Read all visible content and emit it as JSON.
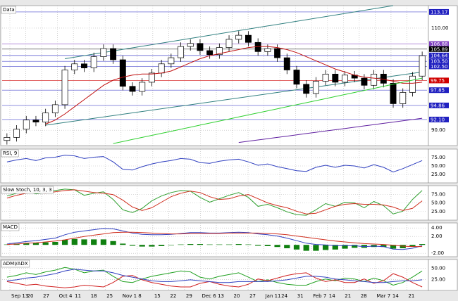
{
  "chart_data": [
    {
      "type": "candlestick",
      "title": "Data",
      "ylim": [
        87,
        114.4
      ],
      "yticks": [
        {
          "value": 90,
          "label": "90.00"
        },
        {
          "value": 110,
          "label": "110.00"
        }
      ],
      "open": [
        88.0,
        88.6,
        90.2,
        92.0,
        91.6,
        93.4,
        95.0,
        101.8,
        103.0,
        102.2,
        104.4,
        106.0,
        103.8,
        98.6,
        97.6,
        99.4,
        101.2,
        103.0,
        104.2,
        106.4,
        107.0,
        105.6,
        104.8,
        106.2,
        107.8,
        108.6,
        107.2,
        105.4,
        106.0,
        104.2,
        101.8,
        99.0,
        97.2,
        99.6,
        101.0,
        99.4,
        100.8,
        100.2,
        98.8,
        101.0,
        99.2,
        95.2,
        97.4,
        100.6
      ],
      "high": [
        89.4,
        91.0,
        92.8,
        92.8,
        94.2,
        95.8,
        102.6,
        103.8,
        103.8,
        105.2,
        106.8,
        106.8,
        104.6,
        99.4,
        100.2,
        102.0,
        103.8,
        105.0,
        107.2,
        107.8,
        107.8,
        106.4,
        107.0,
        108.6,
        109.4,
        109.4,
        108.0,
        106.8,
        106.8,
        105.0,
        102.6,
        99.8,
        100.4,
        101.8,
        101.8,
        101.6,
        101.6,
        101.0,
        101.8,
        101.8,
        100.0,
        98.2,
        101.4,
        105.4
      ],
      "low": [
        87.2,
        87.8,
        89.4,
        90.8,
        90.8,
        92.6,
        94.2,
        101.0,
        101.4,
        101.4,
        103.6,
        103.0,
        97.8,
        96.8,
        96.8,
        98.6,
        100.4,
        102.2,
        103.4,
        105.6,
        104.8,
        104.0,
        104.0,
        105.4,
        107.0,
        106.4,
        104.6,
        104.6,
        103.4,
        101.0,
        98.2,
        96.4,
        96.4,
        98.8,
        98.6,
        98.6,
        99.4,
        98.0,
        98.0,
        98.4,
        94.4,
        94.4,
        96.6,
        99.8
      ],
      "close": [
        88.6,
        90.2,
        92.0,
        91.6,
        93.4,
        95.0,
        101.8,
        103.0,
        102.2,
        104.4,
        106.0,
        103.8,
        98.6,
        97.6,
        99.4,
        101.2,
        103.0,
        104.2,
        106.4,
        107.0,
        105.6,
        104.8,
        106.2,
        107.8,
        108.6,
        107.2,
        105.4,
        106.0,
        104.2,
        101.8,
        99.0,
        97.2,
        99.6,
        101.0,
        99.4,
        100.8,
        100.2,
        98.8,
        101.0,
        99.2,
        95.2,
        97.4,
        100.6,
        104.6
      ],
      "series": [
        {
          "color": "#c01010",
          "values": [
            null,
            null,
            null,
            null,
            91.2,
            92.0,
            93.2,
            94.6,
            96.0,
            97.4,
            98.8,
            99.8,
            100.4,
            100.8,
            101.0,
            101.0,
            101.2,
            101.6,
            102.4,
            103.2,
            104.0,
            104.6,
            105.0,
            105.4,
            105.8,
            106.2,
            106.4,
            106.4,
            106.2,
            105.8,
            105.2,
            104.4,
            103.6,
            102.8,
            102.0,
            101.4,
            100.8,
            100.4,
            100.2,
            100.0,
            99.6,
            99.2,
            99.2,
            99.4
          ]
        },
        {
          "color": "#30d030",
          "values": [
            null,
            null,
            null,
            null,
            null,
            null,
            null,
            null,
            null,
            null,
            null,
            87.4,
            87.8,
            88.2,
            88.6,
            89.0,
            89.4,
            89.8,
            90.2,
            90.6,
            91.0,
            91.4,
            91.8,
            92.2,
            92.6,
            93.0,
            93.4,
            93.8,
            94.2,
            94.6,
            95.0,
            95.4,
            95.8,
            96.2,
            96.6,
            97.0,
            97.4,
            97.8,
            98.2,
            98.6,
            99.0,
            99.4,
            99.8,
            100.2
          ]
        },
        {
          "color": "#6020a0",
          "values": [
            null,
            null,
            null,
            null,
            null,
            null,
            null,
            null,
            null,
            null,
            null,
            null,
            null,
            null,
            null,
            null,
            null,
            null,
            null,
            null,
            null,
            null,
            null,
            null,
            87.6,
            87.85,
            88.1,
            88.35,
            88.6,
            88.85,
            89.1,
            89.35,
            89.6,
            89.85,
            90.1,
            90.35,
            90.6,
            90.85,
            91.1,
            91.35,
            91.6,
            91.85,
            92.1,
            92.35
          ]
        }
      ],
      "trendlines": [
        {
          "color": "#2f7f7f",
          "x": [
            6,
            40
          ],
          "values": [
            104.0,
            114.4
          ]
        },
        {
          "color": "#2f7f7f",
          "x": [
            4,
            43
          ],
          "values": [
            91.0,
            101.4
          ]
        }
      ],
      "levels": [
        {
          "value": 113.17,
          "label": "113.17",
          "color": "#2020c0"
        },
        {
          "value": 106.88,
          "label": "106.88",
          "color": "#8040c0"
        },
        {
          "value": 105.89,
          "label": "105.89",
          "color": "#000000"
        },
        {
          "value": 104.64,
          "label": "104.64",
          "color": "#2020c0"
        },
        {
          "value": 103.5,
          "label": "103.50",
          "color": "#2020c0"
        },
        {
          "value": 102.5,
          "label": "102.50",
          "color": "#2020c0"
        },
        {
          "value": 99.75,
          "label": "99.75",
          "color": "#d00000"
        },
        {
          "value": 97.85,
          "label": "97.85",
          "color": "#2020c0"
        },
        {
          "value": 94.86,
          "label": "94.86",
          "color": "#2020c0"
        },
        {
          "value": 92.1,
          "label": "92.10",
          "color": "#2020c0"
        }
      ]
    },
    {
      "type": "line",
      "title": "RSI, 9",
      "ylim": [
        0,
        100
      ],
      "yticks": [
        {
          "value": 25,
          "label": "25.00"
        },
        {
          "value": 50,
          "label": "50.00"
        },
        {
          "value": 75,
          "label": "75.00"
        }
      ],
      "series": [
        {
          "color": "#3040c0",
          "values": [
            62,
            68,
            72,
            66,
            74,
            76,
            82,
            80,
            72,
            76,
            78,
            62,
            40,
            38,
            48,
            56,
            62,
            66,
            72,
            70,
            60,
            58,
            64,
            68,
            70,
            62,
            52,
            56,
            48,
            42,
            36,
            34,
            46,
            52,
            46,
            52,
            50,
            44,
            54,
            46,
            32,
            42,
            54,
            66
          ]
        }
      ]
    },
    {
      "type": "line",
      "title": "Slow Stoch, 10, 3, 3",
      "ylim": [
        0,
        100
      ],
      "yticks": [
        {
          "value": 25,
          "label": "25.00"
        },
        {
          "value": 50,
          "label": "50.00"
        },
        {
          "value": 75,
          "label": "75.00"
        }
      ],
      "series": [
        {
          "color": "#30a030",
          "values": [
            70,
            78,
            84,
            76,
            80,
            86,
            90,
            88,
            72,
            78,
            82,
            60,
            30,
            22,
            34,
            56,
            70,
            80,
            86,
            84,
            66,
            52,
            62,
            72,
            80,
            66,
            40,
            46,
            36,
            24,
            16,
            14,
            30,
            48,
            40,
            52,
            50,
            36,
            54,
            42,
            18,
            26,
            60,
            86
          ]
        },
        {
          "color": "#d03020",
          "values": [
            64,
            72,
            78,
            80,
            78,
            82,
            86,
            88,
            84,
            80,
            78,
            74,
            58,
            38,
            28,
            36,
            52,
            68,
            78,
            84,
            80,
            68,
            60,
            62,
            70,
            74,
            62,
            50,
            42,
            36,
            26,
            18,
            20,
            30,
            40,
            46,
            48,
            46,
            46,
            44,
            38,
            28,
            34,
            56
          ]
        }
      ]
    },
    {
      "type": "combo",
      "title": "MACD",
      "ylim": [
        -2.8,
        5.2
      ],
      "yticks": [
        {
          "value": -2,
          "label": "-2.00"
        },
        {
          "value": 2,
          "label": "2.00"
        },
        {
          "value": 4,
          "label": "4.00"
        }
      ],
      "histogram": {
        "color": "#108010",
        "values": [
          0.1,
          0.3,
          0.4,
          0.5,
          0.6,
          0.7,
          1.2,
          1.4,
          1.3,
          1.3,
          1.3,
          0.9,
          0.3,
          -0.2,
          -0.4,
          -0.4,
          -0.3,
          -0.1,
          0.1,
          0.2,
          0.2,
          0.1,
          0.1,
          0.1,
          0.2,
          0.1,
          -0.2,
          -0.3,
          -0.5,
          -0.8,
          -1.1,
          -1.4,
          -1.4,
          -1.2,
          -1.1,
          -0.9,
          -0.7,
          -0.7,
          -0.5,
          -0.5,
          -0.9,
          -0.8,
          -0.4,
          0.2
        ]
      },
      "series": [
        {
          "color": "#3040c0",
          "values": [
            0.2,
            0.5,
            0.8,
            1.0,
            1.3,
            1.6,
            2.4,
            3.0,
            3.3,
            3.6,
            3.9,
            3.8,
            3.3,
            2.8,
            2.5,
            2.4,
            2.4,
            2.5,
            2.7,
            2.9,
            2.9,
            2.8,
            2.8,
            2.9,
            3.0,
            2.9,
            2.6,
            2.4,
            2.1,
            1.6,
            1.0,
            0.4,
            0.1,
            0.0,
            -0.2,
            -0.2,
            -0.2,
            -0.4,
            -0.3,
            -0.4,
            -1.0,
            -1.1,
            -0.8,
            -0.2
          ]
        },
        {
          "color": "#d03020",
          "values": [
            0.1,
            0.2,
            0.4,
            0.5,
            0.7,
            0.9,
            1.2,
            1.6,
            2.0,
            2.3,
            2.6,
            2.9,
            3.0,
            3.0,
            2.9,
            2.8,
            2.7,
            2.6,
            2.6,
            2.7,
            2.7,
            2.7,
            2.7,
            2.8,
            2.8,
            2.8,
            2.8,
            2.7,
            2.6,
            2.4,
            2.1,
            1.8,
            1.5,
            1.2,
            0.9,
            0.7,
            0.5,
            0.3,
            0.2,
            0.1,
            -0.1,
            -0.3,
            -0.4,
            -0.4
          ]
        }
      ]
    },
    {
      "type": "line",
      "title": "ADMI/ADX",
      "ylim": [
        0,
        70
      ],
      "yticks": [
        {
          "value": 25,
          "label": "25.00"
        },
        {
          "value": 50,
          "label": "50.00"
        }
      ],
      "series": [
        {
          "color": "#20a020",
          "values": [
            30,
            34,
            40,
            36,
            42,
            46,
            52,
            48,
            40,
            44,
            46,
            32,
            20,
            18,
            26,
            32,
            36,
            40,
            44,
            42,
            30,
            26,
            32,
            36,
            40,
            30,
            20,
            24,
            18,
            14,
            12,
            12,
            20,
            26,
            22,
            28,
            26,
            20,
            28,
            22,
            12,
            18,
            30,
            44
          ]
        },
        {
          "color": "#d02020",
          "values": [
            20,
            16,
            12,
            14,
            10,
            8,
            6,
            8,
            12,
            10,
            8,
            18,
            32,
            34,
            24,
            18,
            14,
            10,
            8,
            8,
            16,
            20,
            14,
            10,
            8,
            14,
            26,
            22,
            28,
            34,
            38,
            40,
            28,
            20,
            24,
            18,
            18,
            26,
            16,
            22,
            38,
            30,
            18,
            8
          ]
        },
        {
          "color": "#3040c0",
          "values": [
            22,
            24,
            28,
            30,
            34,
            38,
            44,
            48,
            46,
            44,
            44,
            40,
            34,
            30,
            26,
            22,
            20,
            20,
            22,
            24,
            22,
            20,
            18,
            18,
            20,
            20,
            20,
            20,
            22,
            24,
            28,
            32,
            32,
            30,
            26,
            24,
            22,
            20,
            18,
            18,
            20,
            22,
            22,
            24
          ]
        }
      ]
    }
  ],
  "x_axis": {
    "labels": [
      "Sep 13",
      "20",
      "27",
      "Oct 4",
      "11",
      "18",
      "25",
      "Nov 1",
      "8",
      "15",
      "22",
      "29",
      "Dec 6",
      "13",
      "20",
      "27",
      "Jan 11",
      "24",
      "31",
      "Feb 7",
      "14",
      "21",
      "28",
      "Mar 7",
      "14",
      "21"
    ]
  }
}
